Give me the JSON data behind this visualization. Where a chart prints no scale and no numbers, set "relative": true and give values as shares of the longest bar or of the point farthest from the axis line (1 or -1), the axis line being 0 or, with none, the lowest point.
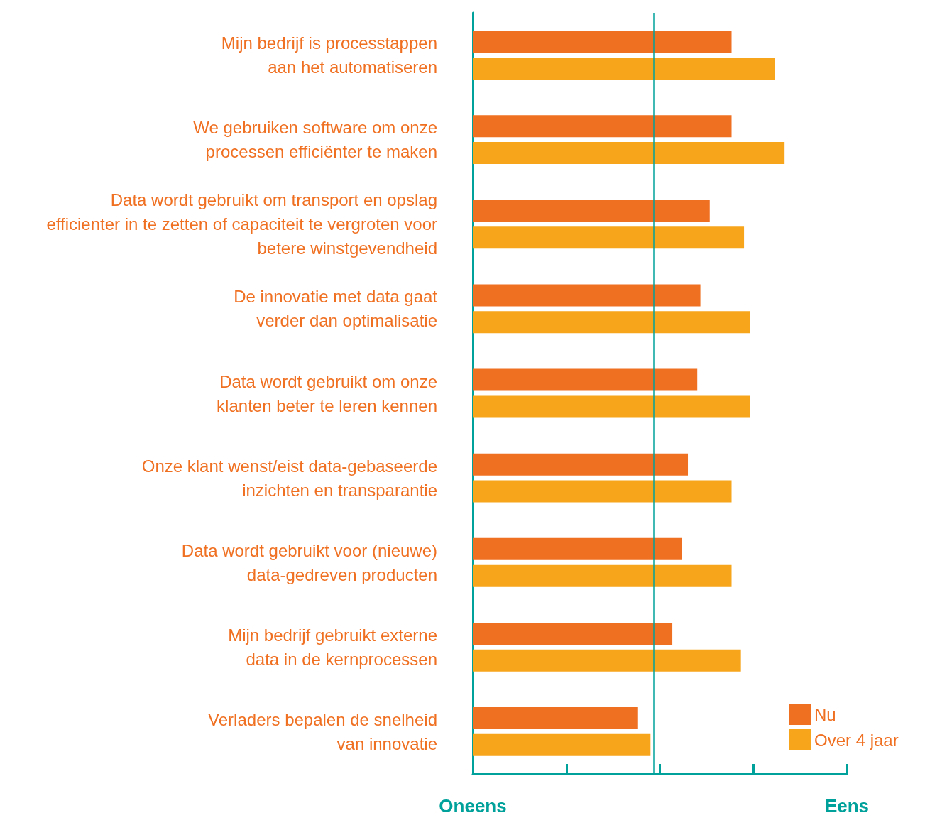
{
  "chart_data": {
    "type": "bar",
    "orientation": "horizontal",
    "relative": true,
    "categories": [
      "Mijn bedrijf is processtappen\naan het automatiseren",
      "We gebruiken software om onze\nprocessen efficiënter te maken",
      "Data wordt gebruikt om transport en opslag\nefficienter in te zetten of capaciteit te vergroten voor\nbetere winstgevendheid",
      "De innovatie met data gaat\nverder dan optimalisatie",
      "Data wordt gebruikt om onze\nklanten beter te leren kennen",
      "Onze klant wenst/eist data-gebaseerde\ninzichten en transparantie",
      "Data wordt gebruikt voor (nieuwe)\ndata-gedreven producten",
      "Mijn bedrijf gebruikt externe\ndata in de kernprocessen",
      "Verladers bepalen de snelheid\nvan innovatie"
    ],
    "series": [
      {
        "name": "Nu",
        "color": "#f07022",
        "values": [
          0.83,
          0.83,
          0.76,
          0.73,
          0.72,
          0.69,
          0.67,
          0.64,
          0.53
        ]
      },
      {
        "name": "Over 4 jaar",
        "color": "#f7a61c",
        "values": [
          0.97,
          1,
          0.87,
          0.89,
          0.89,
          0.83,
          0.83,
          0.86,
          0.57
        ]
      }
    ],
    "annotations": [
      "Oneens",
      "Eens"
    ],
    "ref_lines": [
      {
        "axis": "x",
        "value": 0.58,
        "label": null,
        "color": "#00a19a"
      }
    ],
    "grid": false,
    "legend": "bottom right"
  }
}
